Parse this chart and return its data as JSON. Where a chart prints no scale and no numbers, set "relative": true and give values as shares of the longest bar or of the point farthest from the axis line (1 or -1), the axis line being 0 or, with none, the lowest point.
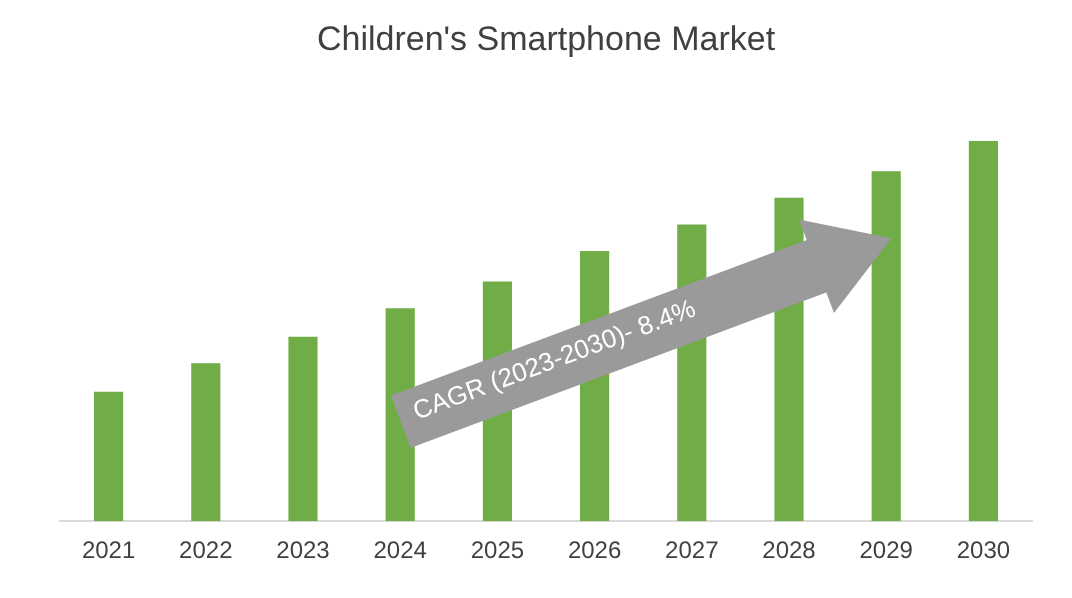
{
  "chart_data": {
    "type": "bar",
    "title": "Children's Smartphone Market",
    "categories": [
      "2021",
      "2022",
      "2023",
      "2024",
      "2025",
      "2026",
      "2027",
      "2028",
      "2029",
      "2030"
    ],
    "values": [
      0.34,
      0.415,
      0.485,
      0.56,
      0.63,
      0.71,
      0.78,
      0.85,
      0.92,
      1
    ],
    "color": "#70ad47",
    "relative": true,
    "grid": false,
    "legend": false,
    "annotations": [
      "CAGR (2023-2030)- 8.4%"
    ]
  }
}
